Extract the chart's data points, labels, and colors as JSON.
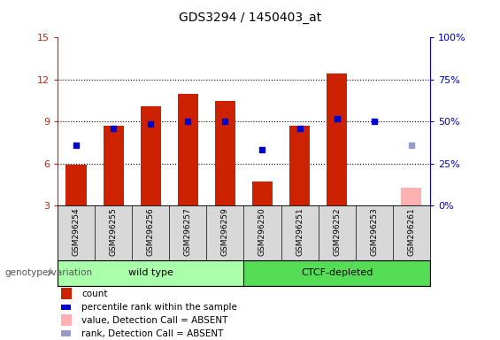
{
  "title": "GDS3294 / 1450403_at",
  "samples": [
    "GSM296254",
    "GSM296255",
    "GSM296256",
    "GSM296257",
    "GSM296259",
    "GSM296250",
    "GSM296251",
    "GSM296252",
    "GSM296253",
    "GSM296261"
  ],
  "count_values": [
    5.9,
    8.7,
    10.1,
    11.0,
    10.5,
    4.7,
    8.7,
    12.4,
    null,
    null
  ],
  "count_absent": [
    null,
    null,
    null,
    null,
    null,
    null,
    null,
    null,
    null,
    4.3
  ],
  "rank_values": [
    7.3,
    8.5,
    8.8,
    9.0,
    9.0,
    7.0,
    8.5,
    9.2,
    9.0,
    null
  ],
  "rank_absent": [
    null,
    null,
    null,
    null,
    null,
    null,
    null,
    null,
    null,
    7.3
  ],
  "groups": [
    {
      "label": "wild type",
      "indices": [
        0,
        1,
        2,
        3,
        4
      ],
      "color": "#aaffaa"
    },
    {
      "label": "CTCF-depleted",
      "indices": [
        5,
        6,
        7,
        8,
        9
      ],
      "color": "#55dd55"
    }
  ],
  "ylim_left": [
    3,
    15
  ],
  "ylim_right": [
    0,
    100
  ],
  "yticks_left": [
    3,
    6,
    9,
    12,
    15
  ],
  "yticks_right": [
    0,
    25,
    50,
    75,
    100
  ],
  "yticklabels_right": [
    "0%",
    "25%",
    "50%",
    "75%",
    "100%"
  ],
  "bar_color": "#cc2200",
  "bar_absent_color": "#ffb0b0",
  "rank_color": "#0000cc",
  "rank_absent_color": "#9999cc",
  "bar_width": 0.55,
  "rank_marker_size": 22,
  "background_color": "#ffffff",
  "tick_color_left": "#cc2200",
  "tick_color_right": "#0000cc",
  "grid_yticks": [
    6,
    9,
    12
  ],
  "legend_items": [
    {
      "label": "count",
      "color": "#cc2200",
      "type": "bar"
    },
    {
      "label": "percentile rank within the sample",
      "color": "#0000cc",
      "type": "square"
    },
    {
      "label": "value, Detection Call = ABSENT",
      "color": "#ffb0b0",
      "type": "bar"
    },
    {
      "label": "rank, Detection Call = ABSENT",
      "color": "#9999cc",
      "type": "square"
    }
  ],
  "xlabel_genotype": "genotype/variation",
  "dotted_grid_color": "#000000"
}
